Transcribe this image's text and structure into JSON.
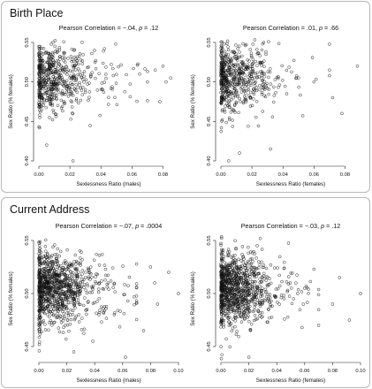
{
  "panels": [
    {
      "title": "Birth Place",
      "charts": [
        {
          "type": "scatter",
          "title_prefix": "Pearson Correlation = ",
          "r": "−.04",
          "p_sep": ", ",
          "p_label": "p",
          "p_value": " = .12",
          "xlabel": "Sexlessness Ratio (males)",
          "ylabel": "Sex Ratio (% females)",
          "xlim": [
            0,
            0.09
          ],
          "ylim": [
            0.4,
            0.55
          ],
          "xticks": [
            0.0,
            0.02,
            0.04,
            0.06,
            0.08
          ],
          "xtick_labels": [
            "0.00",
            "0.02",
            "0.04",
            "0.06",
            "0.08"
          ],
          "yticks": [
            0.4,
            0.45,
            0.5,
            0.55
          ],
          "ytick_labels": [
            "0.40",
            "0.45",
            "0.50",
            "0.55"
          ],
          "seed": 11,
          "n": 520,
          "slope": -0.05,
          "spread": 0.021,
          "xscale": 0.016,
          "column_n": 80,
          "outliers": [
            [
              0.075,
              0.515
            ],
            [
              0.08,
              0.52
            ],
            [
              0.082,
              0.5
            ],
            [
              0.085,
              0.505
            ],
            [
              0.078,
              0.475
            ],
            [
              0.005,
              0.42
            ],
            [
              0.022,
              0.4
            ],
            [
              0.065,
              0.51
            ],
            [
              0.07,
              0.5
            ]
          ]
        },
        {
          "type": "scatter",
          "title_prefix": "Pearson Correlation = ",
          "r": ".01",
          "p_sep": ", ",
          "p_label": "p",
          "p_value": " = .66",
          "xlabel": "Sexlessness Ratio (females)",
          "ylabel": "Sex Ratio (% females)",
          "xlim": [
            0,
            0.09
          ],
          "ylim": [
            0.4,
            0.55
          ],
          "xticks": [
            0.0,
            0.02,
            0.04,
            0.06,
            0.08
          ],
          "xtick_labels": [
            "0.00",
            "0.02",
            "0.04",
            "0.06",
            "0.08"
          ],
          "yticks": [
            0.4,
            0.45,
            0.5,
            0.55
          ],
          "ytick_labels": [
            "0.40",
            "0.45",
            "0.50",
            "0.55"
          ],
          "seed": 23,
          "n": 520,
          "slope": 0.01,
          "spread": 0.021,
          "xscale": 0.013,
          "column_n": 80,
          "outliers": [
            [
              0.07,
              0.515
            ],
            [
              0.088,
              0.52
            ],
            [
              0.072,
              0.48
            ],
            [
              0.078,
              0.46
            ],
            [
              0.06,
              0.5
            ],
            [
              0.012,
              0.41
            ],
            [
              0.032,
              0.415
            ],
            [
              0.005,
              0.4
            ],
            [
              0.05,
              0.505
            ]
          ]
        }
      ]
    },
    {
      "title": "Current Address",
      "charts": [
        {
          "type": "scatter",
          "title_prefix": "Pearson Correlation = ",
          "r": "−.07",
          "p_sep": ", ",
          "p_label": "p",
          "p_value": " = .0004",
          "xlabel": "Sexlessness Ratio (males)",
          "ylabel": "Sex Ratio (% females)",
          "xlim": [
            0,
            0.1
          ],
          "ylim": [
            0.44,
            0.55
          ],
          "xticks": [
            0.0,
            0.02,
            0.04,
            0.06,
            0.08,
            0.1
          ],
          "xtick_labels": [
            "0.00",
            "0.02",
            "0.04",
            "0.06",
            "0.08",
            "0.10"
          ],
          "yticks": [
            0.45,
            0.5,
            0.55
          ],
          "ytick_labels": [
            "0.45",
            "0.50",
            "0.55"
          ],
          "seed": 37,
          "n": 900,
          "slope": -0.08,
          "spread": 0.016,
          "xscale": 0.017,
          "column_n": 110,
          "outliers": [
            [
              0.083,
              0.51
            ],
            [
              0.093,
              0.52
            ],
            [
              0.1,
              0.5
            ],
            [
              0.085,
              0.49
            ],
            [
              0.075,
              0.465
            ],
            [
              0.062,
              0.44
            ],
            [
              0.025,
              0.445
            ],
            [
              0.08,
              0.525
            ]
          ]
        },
        {
          "type": "scatter",
          "title_prefix": "Pearson Correlation = ",
          "r": "−.03",
          "p_sep": ", ",
          "p_label": "p",
          "p_value": " = .12",
          "xlabel": "Sexlessness Ratio (females)",
          "ylabel": "Sex Ratio (% females)",
          "xlim": [
            0,
            0.1
          ],
          "ylim": [
            0.44,
            0.55
          ],
          "xticks": [
            0.0,
            0.02,
            0.04,
            0.06,
            0.08,
            0.1
          ],
          "xtick_labels": [
            "0.00",
            "0.02",
            "0.04",
            "0.06",
            "0.08",
            "0.10"
          ],
          "yticks": [
            0.45,
            0.5,
            0.55
          ],
          "ytick_labels": [
            "0.45",
            "0.50",
            "0.55"
          ],
          "seed": 53,
          "n": 900,
          "slope": -0.03,
          "spread": 0.016,
          "xscale": 0.016,
          "column_n": 110,
          "outliers": [
            [
              0.085,
              0.515
            ],
            [
              0.1,
              0.5
            ],
            [
              0.092,
              0.475
            ],
            [
              0.08,
              0.49
            ],
            [
              0.07,
              0.47
            ],
            [
              0.055,
              0.5
            ],
            [
              0.06,
              0.505
            ],
            [
              0.02,
              0.44
            ]
          ]
        }
      ]
    }
  ]
}
